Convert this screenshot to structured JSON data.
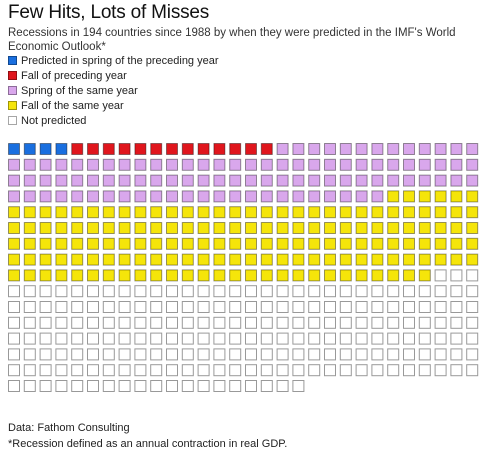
{
  "title": "Few Hits, Lots of Misses",
  "subtitle": "Recessions in 194 countries since 1988 by when they were predicted in the IMF's World Economic Outlook*",
  "legend": [
    {
      "label": "Predicted in spring of the preceding year",
      "color": "#1a6fdf"
    },
    {
      "label": "Fall of preceding year",
      "color": "#e0161d"
    },
    {
      "label": "Spring of the same year",
      "color": "#d9a7ec"
    },
    {
      "label": "Fall of the same year",
      "color": "#f5e50a"
    },
    {
      "label": "Not predicted",
      "color": "#ffffff"
    }
  ],
  "chart_data": {
    "type": "waffle",
    "columns": 30,
    "series": [
      {
        "name": "Predicted in spring of the preceding year",
        "count": 4,
        "color": "#1a6fdf"
      },
      {
        "name": "Fall of preceding year",
        "count": 13,
        "color": "#e0161d"
      },
      {
        "name": "Spring of the same year",
        "count": 97,
        "color": "#d9a7ec"
      },
      {
        "name": "Fall of the same year",
        "count": 153,
        "color": "#f5e50a"
      },
      {
        "name": "Not predicted",
        "count": 202,
        "color": "#ffffff"
      }
    ]
  },
  "source": "Data: Fathom Consulting",
  "footnote": "*Recession defined as an annual contraction in real GDP."
}
